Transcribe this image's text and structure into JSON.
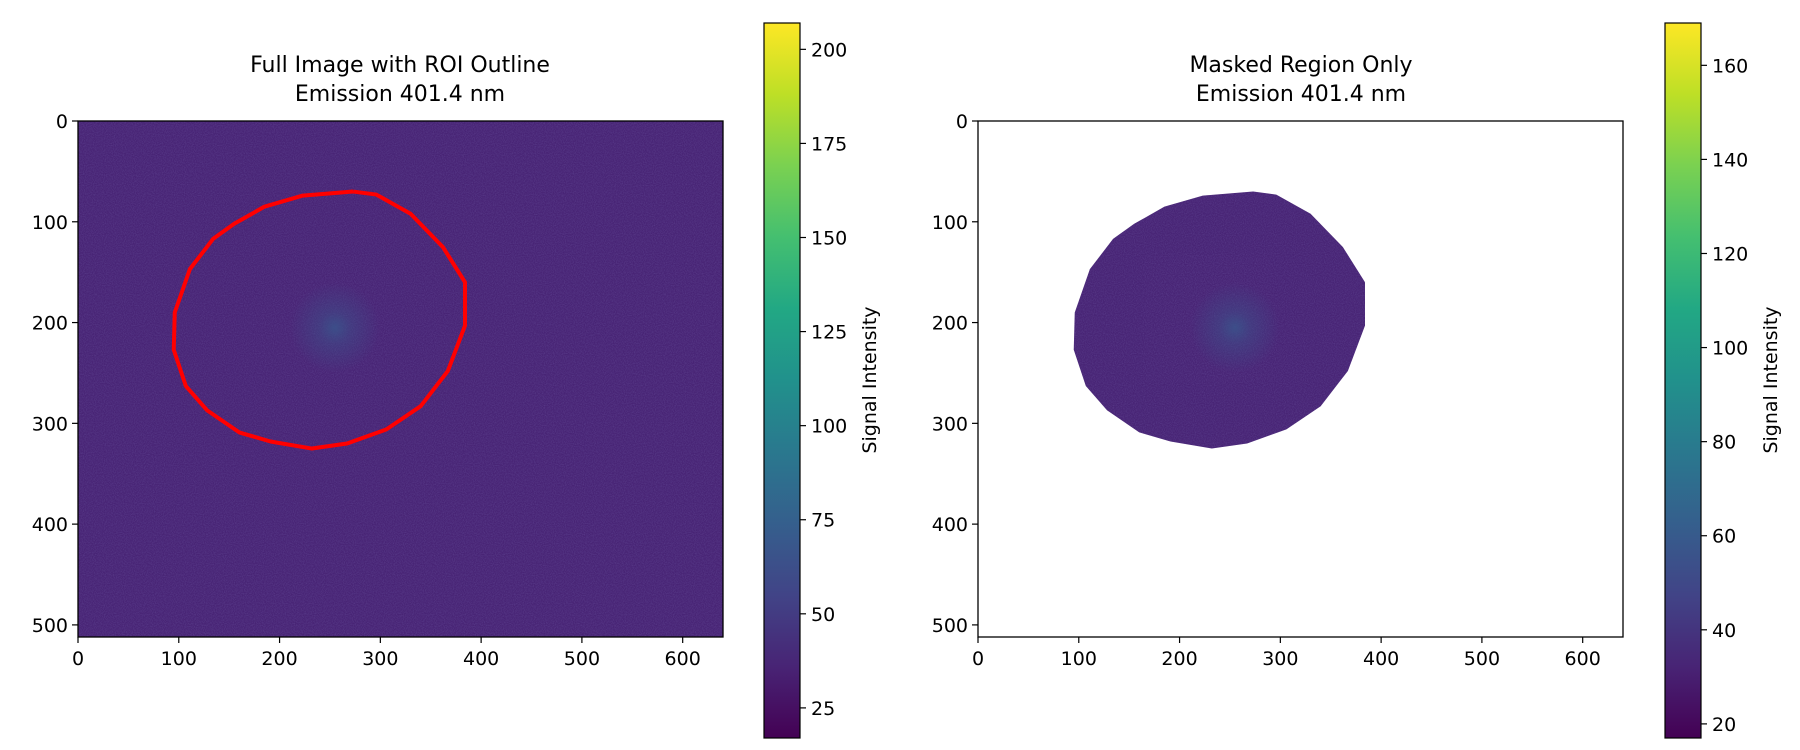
{
  "chart_data": [
    {
      "type": "heatmap",
      "title": "Full Image with ROI Outline",
      "subtitle": "Emission 401.4 nm",
      "xlabel": "",
      "ylabel": "",
      "xlim": [
        0,
        640
      ],
      "ylim": [
        512,
        0
      ],
      "x_ticks": [
        0,
        100,
        200,
        300,
        400,
        500,
        600
      ],
      "y_ticks": [
        0,
        100,
        200,
        300,
        400,
        500
      ],
      "colormap": "viridis",
      "background_intensity": 38,
      "hotspot": {
        "x": 255,
        "y": 205,
        "peak_intensity": 62
      },
      "colorbar": {
        "label": "Signal Intensity",
        "range": [
          17,
          207
        ],
        "ticks": [
          25,
          50,
          75,
          100,
          125,
          150,
          175,
          200
        ]
      },
      "roi_outline": {
        "color": "#ff0000",
        "points": [
          [
            273,
            70
          ],
          [
            296,
            73
          ],
          [
            330,
            92
          ],
          [
            362,
            125
          ],
          [
            384,
            160
          ],
          [
            384,
            203
          ],
          [
            367,
            248
          ],
          [
            340,
            283
          ],
          [
            306,
            306
          ],
          [
            267,
            320
          ],
          [
            232,
            325
          ],
          [
            191,
            318
          ],
          [
            160,
            309
          ],
          [
            128,
            287
          ],
          [
            107,
            263
          ],
          [
            95,
            227
          ],
          [
            96,
            190
          ],
          [
            111,
            147
          ],
          [
            134,
            117
          ],
          [
            155,
            102
          ],
          [
            185,
            85
          ],
          [
            223,
            74
          ],
          [
            273,
            70
          ]
        ]
      }
    },
    {
      "type": "heatmap",
      "title": "Masked Region Only",
      "subtitle": "Emission 401.4 nm",
      "xlabel": "",
      "ylabel": "",
      "xlim": [
        0,
        640
      ],
      "ylim": [
        512,
        0
      ],
      "x_ticks": [
        0,
        100,
        200,
        300,
        400,
        500,
        600
      ],
      "y_ticks": [
        0,
        100,
        200,
        300,
        400,
        500
      ],
      "colormap": "viridis",
      "background_intensity": 38,
      "hotspot": {
        "x": 255,
        "y": 205,
        "peak_intensity": 62
      },
      "colorbar": {
        "label": "Signal Intensity",
        "range": [
          17,
          169
        ],
        "ticks": [
          20,
          40,
          60,
          80,
          100,
          120,
          140,
          160
        ]
      },
      "mask_polygon": [
        [
          273,
          70
        ],
        [
          296,
          73
        ],
        [
          330,
          92
        ],
        [
          362,
          125
        ],
        [
          384,
          160
        ],
        [
          384,
          203
        ],
        [
          367,
          248
        ],
        [
          340,
          283
        ],
        [
          306,
          306
        ],
        [
          267,
          320
        ],
        [
          232,
          325
        ],
        [
          191,
          318
        ],
        [
          160,
          309
        ],
        [
          128,
          287
        ],
        [
          107,
          263
        ],
        [
          95,
          227
        ],
        [
          96,
          190
        ],
        [
          111,
          147
        ],
        [
          134,
          117
        ],
        [
          155,
          102
        ],
        [
          185,
          85
        ],
        [
          223,
          74
        ],
        [
          273,
          70
        ]
      ]
    }
  ]
}
